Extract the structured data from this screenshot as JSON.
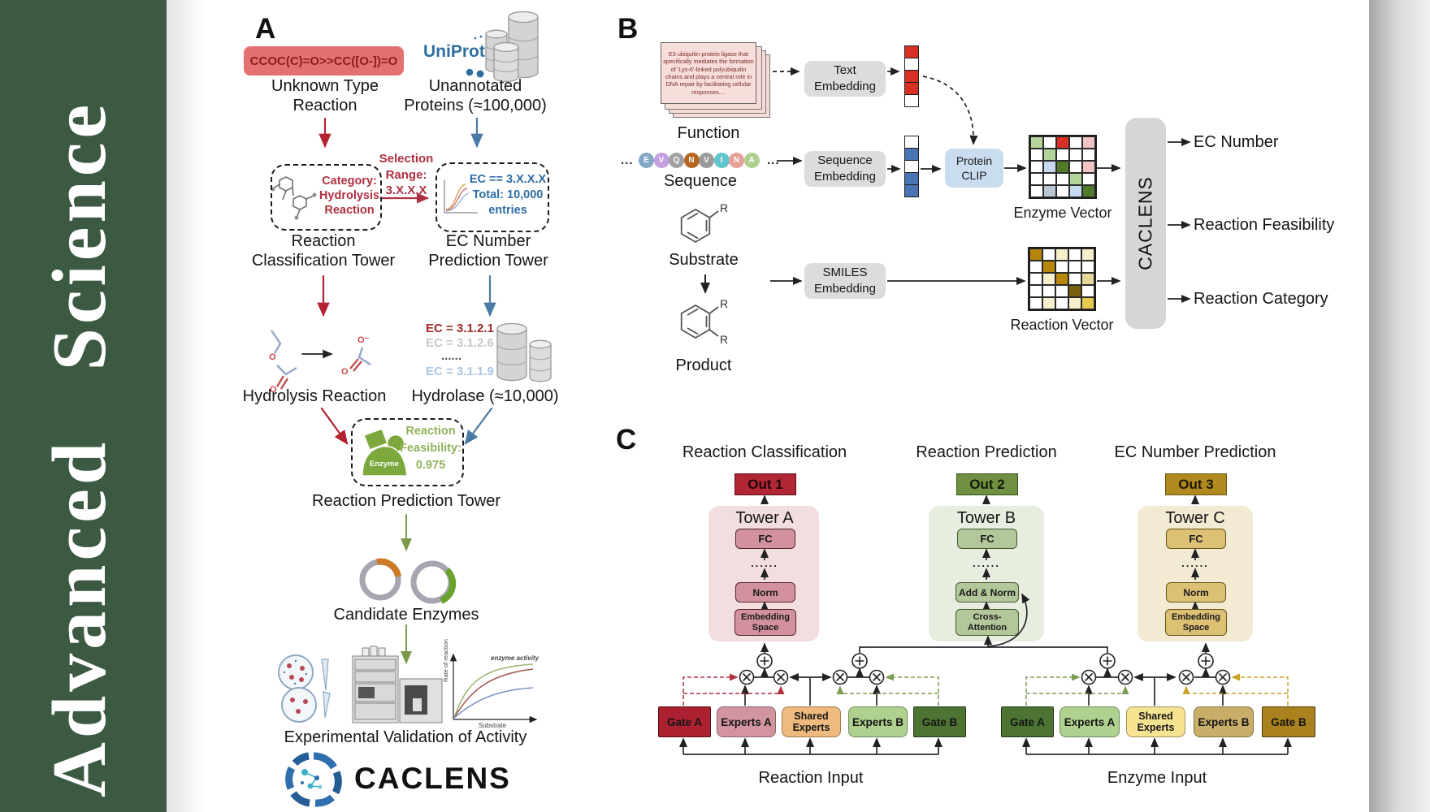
{
  "journal": {
    "title": "Advanced Science"
  },
  "panelA": {
    "label": "A",
    "smiles": "CCOC(C)=O>>CC([O-])=O",
    "unknown_reaction": "Unknown Type\nReaction",
    "uniprot": "UniProt",
    "unannotated_proteins": "Unannotated\nProteins (≈100,000)",
    "selection_range": "Selection\nRange:\n3.X.X.X",
    "category_box": "Category:\nHydrolysis\nReaction",
    "ec_box": "EC == 3.X.X.X\nTotal: 10,000\nentries",
    "classification_tower": "Reaction\nClassification Tower",
    "ec_tower": "EC Number\nPrediction Tower",
    "hydrolysis_reaction": "Hydrolysis Reaction",
    "ec_list": [
      "EC = 3.1.2.1",
      "EC = 3.1.2.6",
      "......",
      "EC = 3.1.1.9"
    ],
    "hydrolase": "Hydrolase (≈10,000)",
    "enzyme_label": "Enzyme",
    "feasibility": "Reaction\nFeasibility:\n0.975",
    "prediction_tower": "Reaction Prediction Tower",
    "candidate_enzymes": "Candidate Enzymes",
    "validation": "Experimental Validation of Activity",
    "logo": "CACLENS",
    "atom_o": "O",
    "atom_o_minus": "O⁻",
    "plot": {
      "ylabel": "Rate of reaction",
      "xlabel": "Substrate",
      "annotation": "enzyme activity"
    }
  },
  "panelB": {
    "label": "B",
    "function_card": "E3 ubiquitin-protein ligase that specifically mediates the formation of 'Lys-6'-linked polyubiquitin chains and plays a central role in DNA repair by facilitating cellular responses....",
    "function_label": "Function",
    "residues": [
      "E",
      "V",
      "Q",
      "N",
      "V",
      "I",
      "N",
      "A"
    ],
    "residue_colors": [
      "#85a8c8",
      "#c39fe0",
      "#a0a0a0",
      "#b5651d",
      "#9a9a9a",
      "#62c4cc",
      "#e79f98",
      "#accf8e"
    ],
    "ellipsis": "...",
    "sequence_label": "Sequence",
    "substrate_label": "Substrate",
    "product_label": "Product",
    "r_group": "R",
    "text_embedding": "Text\nEmbedding",
    "sequence_embedding": "Sequence\nEmbedding",
    "smiles_embedding": "SMILES\nEmbedding",
    "protein_clip": "Protein\nCLIP",
    "enzyme_vector_label": "Enzyme Vector",
    "reaction_vector_label": "Reaction Vector",
    "caclens": "CACLENS",
    "outputs": [
      "EC Number",
      "Reaction Feasibility",
      "Reaction Category"
    ],
    "text_vector": [
      "red",
      "white",
      "red",
      "red",
      "white"
    ],
    "sequence_vector": [
      "white",
      "blue",
      "white",
      "blue",
      "blue"
    ],
    "enzyme_matrix": [
      [
        "lightgreen",
        "white",
        "red",
        "white",
        "pink"
      ],
      [
        "white",
        "lightgreen",
        "white",
        "white",
        "white"
      ],
      [
        "white",
        "lightblue",
        "darkgreen",
        "white",
        "pink"
      ],
      [
        "white",
        "white",
        "white",
        "lightgreen",
        "white"
      ],
      [
        "white",
        "grayblue",
        "white",
        "lightblue",
        "darkgreen"
      ]
    ],
    "reaction_matrix": [
      [
        "gold",
        "white",
        "cream",
        "white",
        "cream"
      ],
      [
        "white",
        "gold",
        "white",
        "white",
        "white"
      ],
      [
        "white",
        "cream",
        "gold",
        "white",
        "tan"
      ],
      [
        "white",
        "white",
        "white",
        "darkgold",
        "white"
      ],
      [
        "white",
        "cream",
        "white",
        "cream",
        "yellow"
      ]
    ],
    "cell_colors": {
      "white": "#ffffff",
      "red": "#d93025",
      "blue": "#4a74b4",
      "lightgreen": "#b3d49a",
      "pink": "#f3c4c4",
      "lightblue": "#c6d9f0",
      "darkgreen": "#4e7a2a",
      "grayblue": "#b9c6d3",
      "gold": "#b8860b",
      "cream": "#f7eecb",
      "tan": "#e8d79b",
      "darkgold": "#776010",
      "yellow": "#e9c94e"
    }
  },
  "panelC": {
    "label": "C",
    "titles": [
      "Reaction Classification",
      "Reaction Prediction",
      "EC Number Prediction"
    ],
    "outs": [
      "Out 1",
      "Out 2",
      "Out 3"
    ],
    "tower_names": [
      "Tower A",
      "Tower B",
      "Tower C"
    ],
    "fc": "FC",
    "dots": "......",
    "norm": "Norm",
    "add_norm": "Add & Norm",
    "embedding_space": "Embedding\nSpace",
    "cross_attention": "Cross-\nAttention",
    "gate_a": "Gate A",
    "experts_a": "Experts A",
    "shared_experts": "Shared\nExperts",
    "experts_b": "Experts B",
    "gate_b": "Gate B",
    "inputs": [
      "Reaction Input",
      "Enzyme Input"
    ]
  }
}
